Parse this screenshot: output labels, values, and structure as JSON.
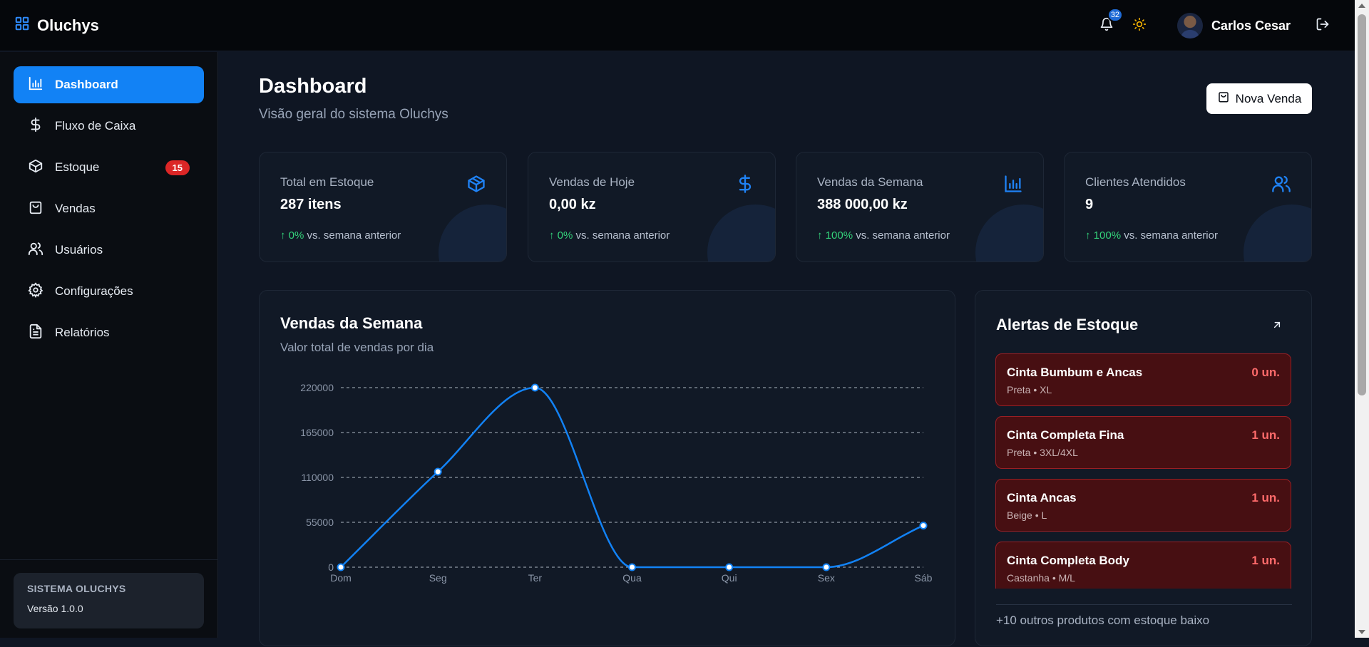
{
  "app": {
    "name": "Oluchys"
  },
  "header": {
    "notifications_count": "32",
    "user_name": "Carlos Cesar"
  },
  "sidebar": {
    "items": [
      {
        "label": "Dashboard",
        "icon": "bar-chart-icon",
        "active": true
      },
      {
        "label": "Fluxo de Caixa",
        "icon": "dollar-icon"
      },
      {
        "label": "Estoque",
        "icon": "box-icon",
        "badge": "15"
      },
      {
        "label": "Vendas",
        "icon": "shopping-bag-icon"
      },
      {
        "label": "Usuários",
        "icon": "users-icon"
      },
      {
        "label": "Configurações",
        "icon": "gear-icon"
      },
      {
        "label": "Relatórios",
        "icon": "file-text-icon"
      }
    ],
    "footer": {
      "system": "SISTEMA OLUCHYS",
      "version": "Versão 1.0.0"
    }
  },
  "page": {
    "title": "Dashboard",
    "subtitle": "Visão geral do sistema Oluchys",
    "new_sale": "Nova Venda"
  },
  "stats": [
    {
      "label": "Total em Estoque",
      "value": "287 itens",
      "trend": "↑ 0%",
      "trend_text": "vs. semana anterior",
      "icon": "box-icon"
    },
    {
      "label": "Vendas de Hoje",
      "value": "0,00 kz",
      "trend": "↑ 0%",
      "trend_text": "vs. semana anterior",
      "icon": "dollar-icon"
    },
    {
      "label": "Vendas da Semana",
      "value": "388 000,00 kz",
      "trend": "↑ 100%",
      "trend_text": "vs. semana anterior",
      "icon": "bar-chart-icon"
    },
    {
      "label": "Clientes Atendidos",
      "value": "9",
      "trend": "↑ 100%",
      "trend_text": "vs. semana anterior",
      "icon": "users-icon"
    }
  ],
  "chart_card": {
    "title": "Vendas da Semana",
    "subtitle": "Valor total de vendas por dia"
  },
  "chart_data": {
    "type": "line",
    "title": "Vendas da Semana",
    "subtitle": "Valor total de vendas por dia",
    "categories": [
      "Dom",
      "Seg",
      "Ter",
      "Qua",
      "Qui",
      "Sex",
      "Sáb"
    ],
    "values": [
      0,
      117000,
      220000,
      0,
      0,
      0,
      51000
    ],
    "yticks": [
      0,
      55000,
      110000,
      165000,
      220000
    ],
    "ylim": [
      0,
      220000
    ],
    "grid": true,
    "color": "#1282f5"
  },
  "alerts": {
    "title": "Alertas de Estoque",
    "items": [
      {
        "name": "Cinta Bumbum e Ancas",
        "meta": "Preta • XL",
        "qty": "0 un."
      },
      {
        "name": "Cinta Completa Fina",
        "meta": "Preta • 3XL/4XL",
        "qty": "1 un."
      },
      {
        "name": "Cinta Ancas",
        "meta": "Beige • L",
        "qty": "1 un."
      },
      {
        "name": "Cinta Completa Body",
        "meta": "Castanha • M/L",
        "qty": "1 un."
      }
    ],
    "more": "+10 outros produtos com estoque baixo"
  },
  "colors": {
    "accent": "#1282f5",
    "danger": "#dc2626",
    "success": "#34d27a",
    "background": "#0f1623"
  }
}
